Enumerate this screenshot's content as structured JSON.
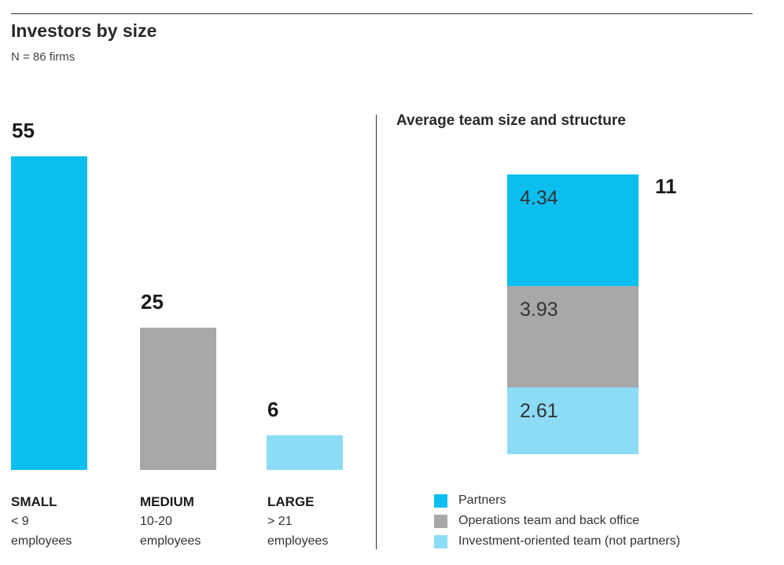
{
  "header": {
    "title": "Investors by size",
    "subtitle": "N = 86 firms"
  },
  "colors": {
    "small": "#0abfef",
    "medium": "#a7a8aa",
    "large": "#8cdcf6",
    "partners": "#0abfef",
    "operations": "#a7a8aa",
    "investment": "#8cdcf6"
  },
  "chart_data": [
    {
      "type": "bar",
      "categories": [
        "SMALL",
        "MEDIUM",
        "LARGE"
      ],
      "values": [
        55,
        25,
        6
      ],
      "value_labels": [
        "55",
        "25",
        "6"
      ],
      "category_sublabels": [
        [
          "< 9",
          "employees"
        ],
        [
          "10-20",
          "employees"
        ],
        [
          "> 21",
          "employees"
        ]
      ],
      "ylim": [
        0,
        55
      ],
      "grid": false
    },
    {
      "type": "bar",
      "stacked": true,
      "title": "Average team size and structure",
      "categories": [
        ""
      ],
      "series": [
        {
          "name": "Partners",
          "values": [
            4.34
          ],
          "label": "4.34"
        },
        {
          "name": "Operations team and back office",
          "values": [
            3.93
          ],
          "label": "3.93"
        },
        {
          "name": "Investment-oriented team (not partners)",
          "values": [
            2.61
          ],
          "label": "2.61"
        }
      ],
      "total_label": "11",
      "legend_position": "bottom",
      "grid": false
    }
  ]
}
